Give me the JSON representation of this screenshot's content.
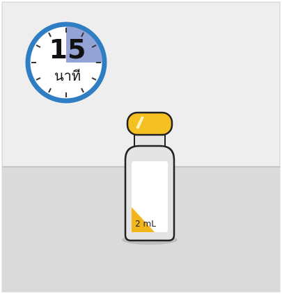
{
  "timer": {
    "number": "15",
    "unit": "นาที"
  },
  "vial": {
    "label": "2 mL"
  }
}
